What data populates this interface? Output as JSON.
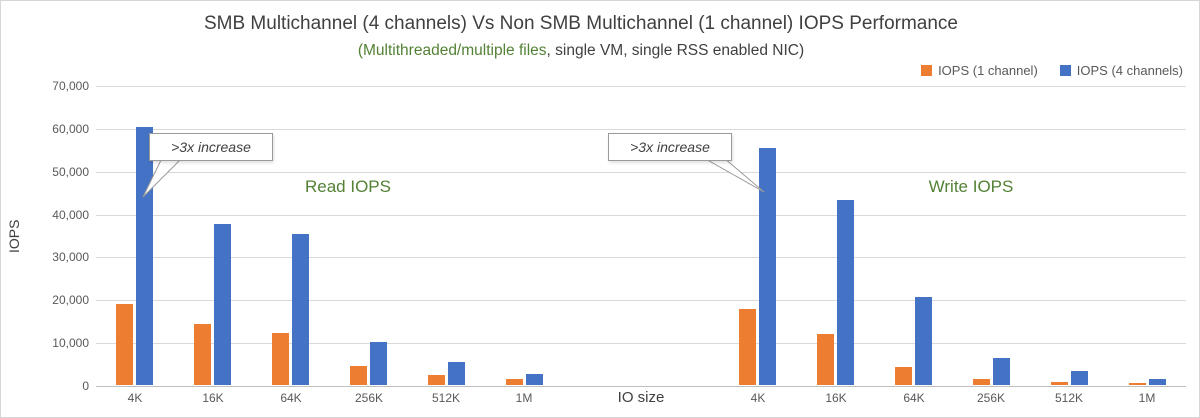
{
  "title": "SMB Multichannel (4 channels) Vs Non SMB Multichannel (1 channel) IOPS Performance",
  "subtitle": {
    "green_part": "(Multithreaded/multiple files",
    "rest_part": ", single VM, single RSS enabled NIC)"
  },
  "legend": {
    "items": [
      {
        "label": "IOPS (1 channel)",
        "color": "#ED7D31"
      },
      {
        "label": "IOPS (4 channels)",
        "color": "#4472C4"
      }
    ]
  },
  "colors": {
    "orange_series": "#ED7D31",
    "blue_series": "#4472C4",
    "green_text": "#538135",
    "gridline": "#D9D9D9"
  },
  "chart_data": {
    "type": "bar",
    "title": "SMB Multichannel (4 channels) Vs Non SMB Multichannel (1 channel) IOPS Performance",
    "subtitle": "(Multithreaded/multiple files, single VM, single RSS enabled NIC)",
    "xlabel": "IO size",
    "ylabel": "IOPS",
    "ylim": [
      0,
      70000
    ],
    "ytick_step": 10000,
    "grid": true,
    "legend_position": "top-right",
    "groups": [
      {
        "name": "Read IOPS",
        "annotation": ">3x increase",
        "categories": [
          "4K",
          "16K",
          "64K",
          "256K",
          "512K",
          "1M"
        ],
        "series": [
          {
            "name": "IOPS (1 channel)",
            "color": "#ED7D31",
            "values": [
              19000,
              14300,
              12100,
              4400,
              2400,
              1300
            ]
          },
          {
            "name": "IOPS (4 channels)",
            "color": "#4472C4",
            "values": [
              60300,
              37600,
              35300,
              10100,
              5300,
              2600
            ]
          }
        ]
      },
      {
        "name": "Write IOPS",
        "annotation": ">3x increase",
        "categories": [
          "4K",
          "16K",
          "64K",
          "256K",
          "512K",
          "1M"
        ],
        "series": [
          {
            "name": "IOPS (1 channel)",
            "color": "#ED7D31",
            "values": [
              17800,
              11900,
              4200,
              1500,
              800,
              400
            ]
          },
          {
            "name": "IOPS (4 channels)",
            "color": "#4472C4",
            "values": [
              55400,
              43100,
              20600,
              6300,
              3300,
              1500
            ]
          }
        ]
      }
    ]
  }
}
